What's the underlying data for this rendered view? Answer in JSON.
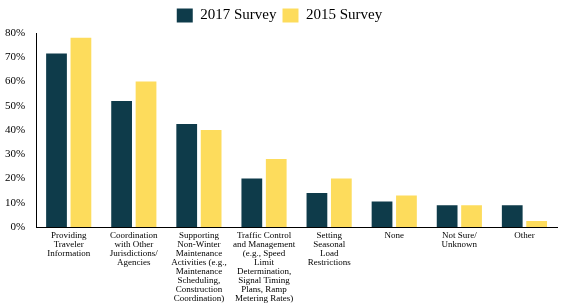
{
  "chart_data": {
    "type": "bar",
    "categories": [
      [
        "Providing",
        "Traveler",
        "Information"
      ],
      [
        "Coordination",
        "with Other",
        "Jurisdictions/",
        "Agencies"
      ],
      [
        "Supporting",
        "Non-Winter",
        "Maintenance",
        "Activities (e.g.,",
        "Maintenance",
        "Scheduling,",
        "Construction",
        "Coordination)"
      ],
      [
        "Traffic Control",
        "and Management",
        "(e.g., Speed",
        "Limit",
        "Determination,",
        "Signal Timing",
        "Plans, Ramp",
        "Metering Rates)"
      ],
      [
        "Setting",
        "Seasonal",
        "Load",
        "Restrictions"
      ],
      [
        "None"
      ],
      [
        "Not Sure/",
        "Unknown"
      ],
      [
        "Other"
      ]
    ],
    "series": [
      {
        "name": "2017 Survey",
        "color": "#0e3b4a",
        "values": [
          71.5,
          52,
          42.5,
          20,
          14,
          10.5,
          9,
          9
        ]
      },
      {
        "name": "2015 Survey",
        "color": "#fddc5c",
        "values": [
          78,
          60,
          40,
          28,
          20,
          13,
          9,
          2.5
        ]
      }
    ],
    "ylim": [
      0,
      80
    ],
    "yticks": [
      {
        "value": 0,
        "label": "0%"
      },
      {
        "value": 10,
        "label": "10%"
      },
      {
        "value": 20,
        "label": "20%"
      },
      {
        "value": 30,
        "label": "30%"
      },
      {
        "value": 40,
        "label": "40%"
      },
      {
        "value": 50,
        "label": "50%"
      },
      {
        "value": 60,
        "label": "60%"
      },
      {
        "value": 70,
        "label": "70%"
      },
      {
        "value": 80,
        "label": "80%"
      }
    ],
    "grid": false,
    "legend": "top"
  }
}
